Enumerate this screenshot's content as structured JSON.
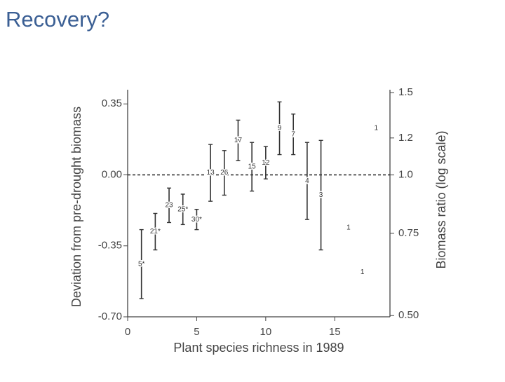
{
  "title": "Recovery?",
  "chart_data": {
    "type": "errorbar",
    "xlabel": "Plant species richness in 1989",
    "ylabel": "Deviation from pre-drought biomass",
    "y2label": "Biomass ratio (log scale)",
    "x": [
      1,
      2,
      3,
      4,
      5,
      6,
      7,
      8,
      9,
      10,
      11,
      12,
      13,
      14,
      16,
      17,
      18
    ],
    "values": [
      -0.44,
      -0.28,
      -0.15,
      -0.17,
      -0.22,
      0.01,
      0.01,
      0.17,
      0.04,
      0.06,
      0.23,
      0.2,
      -0.03,
      -0.1,
      -0.26,
      -0.48,
      0.23
    ],
    "errors": [
      0.17,
      0.09,
      0.085,
      0.075,
      0.05,
      0.14,
      0.11,
      0.1,
      0.12,
      0.08,
      0.13,
      0.1,
      0.19,
      0.27,
      null,
      null,
      null
    ],
    "point_labels": [
      "5*",
      "21*",
      "23",
      "25*",
      "30*",
      "13",
      "26",
      "17",
      "15",
      "12",
      "9",
      "7",
      "4",
      "3",
      "1",
      "1",
      "1"
    ],
    "xlim": [
      0,
      19
    ],
    "xticks": [
      0,
      5,
      10,
      15
    ],
    "ylim": [
      -0.7,
      0.42
    ],
    "yticks": [
      {
        "value": 0.35,
        "label": "0.35"
      },
      {
        "value": 0,
        "label": "0.00"
      },
      {
        "value": -0.35,
        "label": "-0.35"
      },
      {
        "value": -0.7,
        "label": "-0.70"
      }
    ],
    "y2lim": [
      0.497,
      1.522
    ],
    "y2log": true,
    "y2ticks": [
      1.5,
      1.2,
      {
        "value": 1,
        "label": "1.0"
      },
      0.75,
      {
        "value": 0.5,
        "label": "0.50"
      }
    ],
    "reference_line": 0,
    "color": "#333333"
  }
}
